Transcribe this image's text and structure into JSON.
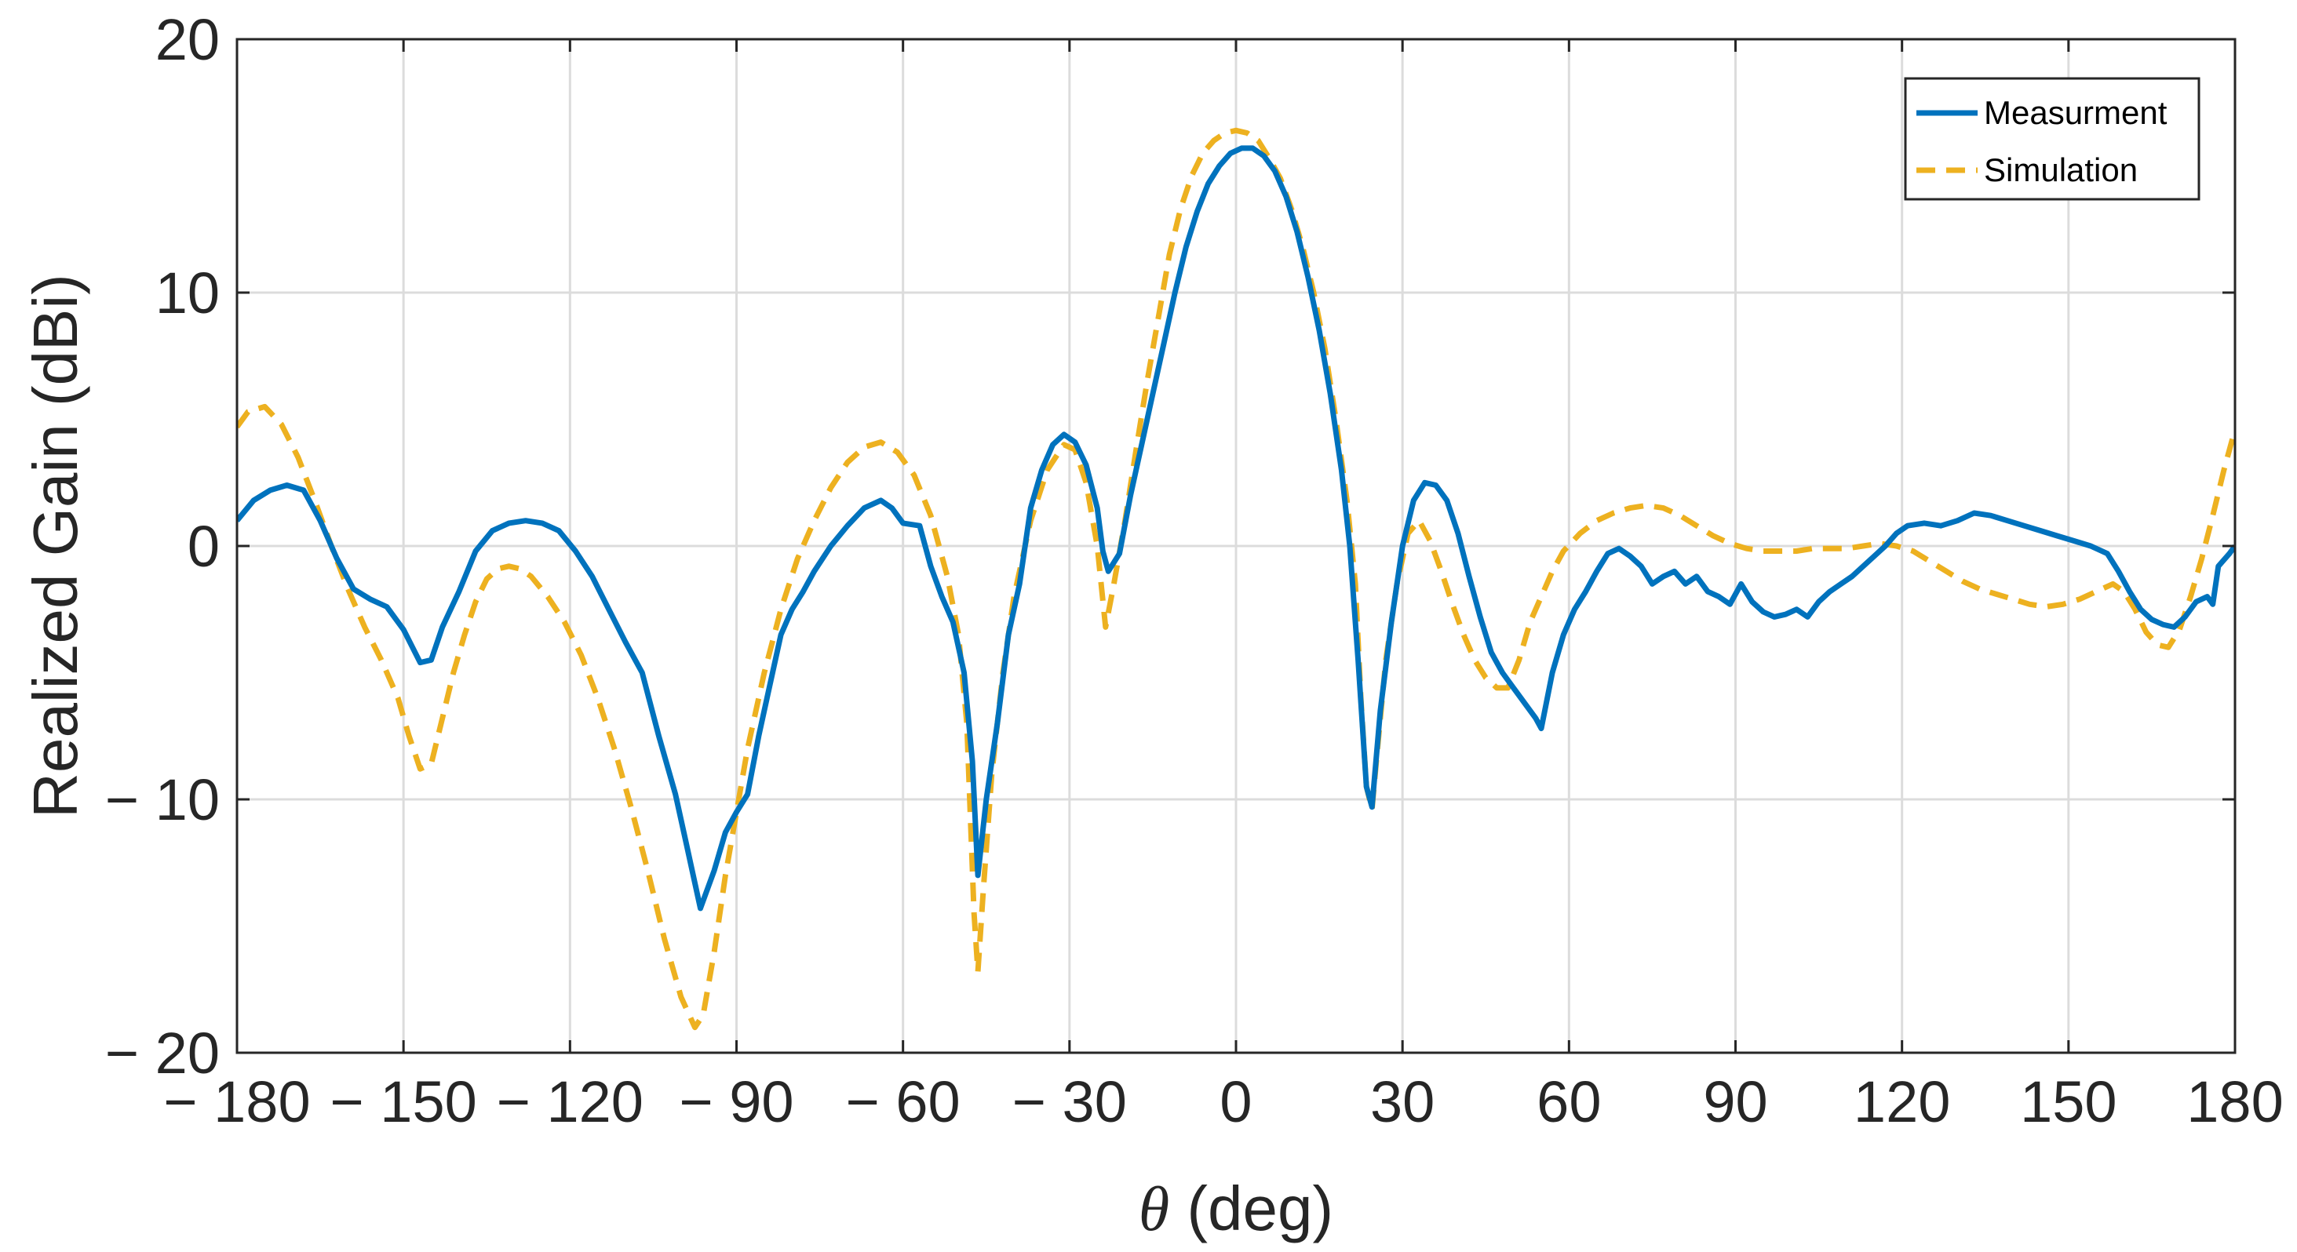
{
  "chart_data": {
    "type": "line",
    "xlabel_symbol": "θ",
    "xlabel_rest": " (deg)",
    "ylabel": "Realized Gain (dBi)",
    "xlim": [
      -180,
      180
    ],
    "ylim": [
      -20,
      20
    ],
    "x_ticks": [
      -180,
      -150,
      -120,
      -90,
      -60,
      -30,
      0,
      30,
      60,
      90,
      120,
      150,
      180
    ],
    "x_tick_labels": [
      "− 180",
      "− 150",
      "− 120",
      "− 90",
      "− 60",
      "− 30",
      "0",
      "30",
      "60",
      "90",
      "120",
      "150",
      "180"
    ],
    "y_ticks": [
      -20,
      -10,
      0,
      10,
      20
    ],
    "y_tick_labels": [
      "− 20",
      "− 10",
      "0",
      "10",
      "20"
    ],
    "grid": true,
    "legend_position": "top-right",
    "series": [
      {
        "name": "Measurment",
        "color": "#0072BD",
        "style": "solid",
        "points": [
          [
            -180,
            1.0
          ],
          [
            -177,
            1.8
          ],
          [
            -174,
            2.2
          ],
          [
            -171,
            2.4
          ],
          [
            -168,
            2.2
          ],
          [
            -165,
            1.0
          ],
          [
            -162,
            -0.5
          ],
          [
            -159,
            -1.7
          ],
          [
            -156,
            -2.1
          ],
          [
            -153,
            -2.4
          ],
          [
            -150,
            -3.3
          ],
          [
            -147,
            -4.6
          ],
          [
            -145,
            -4.5
          ],
          [
            -143,
            -3.2
          ],
          [
            -140,
            -1.8
          ],
          [
            -137,
            -0.2
          ],
          [
            -134,
            0.6
          ],
          [
            -131,
            0.9
          ],
          [
            -128,
            1.0
          ],
          [
            -125,
            0.9
          ],
          [
            -122,
            0.6
          ],
          [
            -119,
            -0.2
          ],
          [
            -116,
            -1.2
          ],
          [
            -113,
            -2.5
          ],
          [
            -110,
            -3.8
          ],
          [
            -107,
            -5.0
          ],
          [
            -104,
            -7.5
          ],
          [
            -101,
            -9.8
          ],
          [
            -99,
            -11.8
          ],
          [
            -96.5,
            -14.3
          ],
          [
            -94,
            -12.8
          ],
          [
            -92,
            -11.3
          ],
          [
            -90,
            -10.5
          ],
          [
            -88,
            -9.8
          ],
          [
            -86,
            -7.5
          ],
          [
            -84,
            -5.5
          ],
          [
            -82,
            -3.5
          ],
          [
            -80,
            -2.5
          ],
          [
            -78,
            -1.8
          ],
          [
            -76,
            -1.0
          ],
          [
            -73,
            0.0
          ],
          [
            -70,
            0.8
          ],
          [
            -67,
            1.5
          ],
          [
            -64,
            1.8
          ],
          [
            -62,
            1.5
          ],
          [
            -60,
            0.9
          ],
          [
            -57,
            0.8
          ],
          [
            -55,
            -0.8
          ],
          [
            -53,
            -2.0
          ],
          [
            -51,
            -3.0
          ],
          [
            -49,
            -5.0
          ],
          [
            -47.5,
            -8.5
          ],
          [
            -46.5,
            -13.0
          ],
          [
            -45,
            -10.0
          ],
          [
            -43,
            -7.0
          ],
          [
            -41,
            -3.5
          ],
          [
            -39,
            -1.5
          ],
          [
            -37,
            1.5
          ],
          [
            -35,
            3.0
          ],
          [
            -33,
            4.0
          ],
          [
            -31,
            4.4
          ],
          [
            -29,
            4.1
          ],
          [
            -27,
            3.2
          ],
          [
            -25,
            1.5
          ],
          [
            -24,
            -0.2
          ],
          [
            -23,
            -1.0
          ],
          [
            -21,
            -0.3
          ],
          [
            -19,
            2.0
          ],
          [
            -17,
            4.0
          ],
          [
            -15,
            6.0
          ],
          [
            -13,
            8.0
          ],
          [
            -11,
            10.0
          ],
          [
            -9,
            11.8
          ],
          [
            -7,
            13.2
          ],
          [
            -5,
            14.3
          ],
          [
            -3,
            15.0
          ],
          [
            -1,
            15.5
          ],
          [
            1,
            15.7
          ],
          [
            3,
            15.7
          ],
          [
            5,
            15.4
          ],
          [
            7,
            14.8
          ],
          [
            9,
            13.8
          ],
          [
            11,
            12.4
          ],
          [
            13,
            10.6
          ],
          [
            15,
            8.5
          ],
          [
            17,
            6.0
          ],
          [
            19,
            3.0
          ],
          [
            20.5,
            0.0
          ],
          [
            22,
            -4.5
          ],
          [
            23.5,
            -9.5
          ],
          [
            24.5,
            -10.3
          ],
          [
            26,
            -6.5
          ],
          [
            28,
            -3.0
          ],
          [
            30,
            0.0
          ],
          [
            32,
            1.8
          ],
          [
            34,
            2.5
          ],
          [
            36,
            2.4
          ],
          [
            38,
            1.8
          ],
          [
            40,
            0.5
          ],
          [
            42,
            -1.2
          ],
          [
            44,
            -2.8
          ],
          [
            46,
            -4.2
          ],
          [
            48,
            -5.0
          ],
          [
            50,
            -5.6
          ],
          [
            52,
            -6.2
          ],
          [
            54,
            -6.8
          ],
          [
            55,
            -7.2
          ],
          [
            57,
            -5.0
          ],
          [
            59,
            -3.5
          ],
          [
            61,
            -2.5
          ],
          [
            63,
            -1.8
          ],
          [
            65,
            -1.0
          ],
          [
            67,
            -0.3
          ],
          [
            69,
            -0.1
          ],
          [
            71,
            -0.4
          ],
          [
            73,
            -0.8
          ],
          [
            75,
            -1.5
          ],
          [
            77,
            -1.2
          ],
          [
            79,
            -1.0
          ],
          [
            81,
            -1.5
          ],
          [
            83,
            -1.2
          ],
          [
            85,
            -1.8
          ],
          [
            87,
            -2.0
          ],
          [
            89,
            -2.3
          ],
          [
            91,
            -1.5
          ],
          [
            93,
            -2.2
          ],
          [
            95,
            -2.6
          ],
          [
            97,
            -2.8
          ],
          [
            99,
            -2.7
          ],
          [
            101,
            -2.5
          ],
          [
            103,
            -2.8
          ],
          [
            105,
            -2.2
          ],
          [
            107,
            -1.8
          ],
          [
            109,
            -1.5
          ],
          [
            111,
            -1.2
          ],
          [
            113,
            -0.8
          ],
          [
            115,
            -0.4
          ],
          [
            117,
            0.0
          ],
          [
            119,
            0.5
          ],
          [
            121,
            0.8
          ],
          [
            124,
            0.9
          ],
          [
            127,
            0.8
          ],
          [
            130,
            1.0
          ],
          [
            133,
            1.3
          ],
          [
            136,
            1.2
          ],
          [
            139,
            1.0
          ],
          [
            142,
            0.8
          ],
          [
            145,
            0.6
          ],
          [
            148,
            0.4
          ],
          [
            151,
            0.2
          ],
          [
            154,
            0.0
          ],
          [
            157,
            -0.3
          ],
          [
            159,
            -1.0
          ],
          [
            161,
            -1.8
          ],
          [
            163,
            -2.5
          ],
          [
            165,
            -2.9
          ],
          [
            167,
            -3.1
          ],
          [
            169,
            -3.2
          ],
          [
            171,
            -2.8
          ],
          [
            173,
            -2.2
          ],
          [
            175,
            -2.0
          ],
          [
            176,
            -2.3
          ],
          [
            177,
            -0.8
          ],
          [
            179,
            -0.3
          ],
          [
            180,
            0.0
          ]
        ]
      },
      {
        "name": "Simulation",
        "color": "#EDB120",
        "style": "dashed",
        "points": [
          [
            -180,
            4.7
          ],
          [
            -178,
            5.3
          ],
          [
            -175,
            5.5
          ],
          [
            -172,
            4.8
          ],
          [
            -169,
            3.5
          ],
          [
            -166,
            1.8
          ],
          [
            -163,
            0.0
          ],
          [
            -160,
            -1.7
          ],
          [
            -157,
            -3.2
          ],
          [
            -154,
            -4.5
          ],
          [
            -151,
            -6.0
          ],
          [
            -149,
            -7.5
          ],
          [
            -147,
            -8.8
          ],
          [
            -145,
            -8.6
          ],
          [
            -143,
            -6.8
          ],
          [
            -141,
            -5.0
          ],
          [
            -139,
            -3.5
          ],
          [
            -137,
            -2.2
          ],
          [
            -135,
            -1.3
          ],
          [
            -133,
            -0.9
          ],
          [
            -131,
            -0.8
          ],
          [
            -129,
            -0.9
          ],
          [
            -127,
            -1.2
          ],
          [
            -124,
            -2.0
          ],
          [
            -121,
            -3.0
          ],
          [
            -118,
            -4.3
          ],
          [
            -115,
            -6.0
          ],
          [
            -112,
            -8.0
          ],
          [
            -109,
            -10.3
          ],
          [
            -106,
            -12.8
          ],
          [
            -103,
            -15.5
          ],
          [
            -100,
            -17.8
          ],
          [
            -97.5,
            -19.0
          ],
          [
            -96,
            -18.5
          ],
          [
            -94,
            -16.0
          ],
          [
            -92,
            -13.0
          ],
          [
            -90,
            -10.5
          ],
          [
            -88,
            -8.0
          ],
          [
            -85,
            -5.0
          ],
          [
            -82,
            -2.5
          ],
          [
            -79,
            -0.5
          ],
          [
            -76,
            1.0
          ],
          [
            -73,
            2.3
          ],
          [
            -70,
            3.3
          ],
          [
            -67,
            3.9
          ],
          [
            -64,
            4.1
          ],
          [
            -61,
            3.7
          ],
          [
            -58,
            2.8
          ],
          [
            -55,
            1.2
          ],
          [
            -52,
            -1.2
          ],
          [
            -50,
            -3.5
          ],
          [
            -48.5,
            -7.0
          ],
          [
            -47.2,
            -14.5
          ],
          [
            -46.5,
            -16.8
          ],
          [
            -45.5,
            -13.5
          ],
          [
            -44,
            -9.0
          ],
          [
            -42,
            -5.0
          ],
          [
            -40,
            -2.0
          ],
          [
            -37,
            1.0
          ],
          [
            -34,
            3.0
          ],
          [
            -31,
            4.0
          ],
          [
            -29,
            3.8
          ],
          [
            -27,
            2.5
          ],
          [
            -25,
            0.0
          ],
          [
            -23.5,
            -3.2
          ],
          [
            -22,
            -1.5
          ],
          [
            -20,
            1.0
          ],
          [
            -18,
            3.8
          ],
          [
            -16,
            6.5
          ],
          [
            -14,
            9.0
          ],
          [
            -12,
            11.5
          ],
          [
            -10,
            13.3
          ],
          [
            -8,
            14.6
          ],
          [
            -6,
            15.5
          ],
          [
            -4,
            16.0
          ],
          [
            -2,
            16.3
          ],
          [
            0,
            16.4
          ],
          [
            2,
            16.3
          ],
          [
            4,
            16.0
          ],
          [
            6,
            15.3
          ],
          [
            8,
            14.5
          ],
          [
            10,
            13.3
          ],
          [
            12,
            11.8
          ],
          [
            14,
            10.0
          ],
          [
            16,
            7.8
          ],
          [
            18,
            5.0
          ],
          [
            20,
            1.8
          ],
          [
            21.5,
            -1.5
          ],
          [
            22.5,
            -6.0
          ],
          [
            23.5,
            -9.5
          ],
          [
            24.5,
            -10.4
          ],
          [
            25.5,
            -8.0
          ],
          [
            27,
            -4.5
          ],
          [
            29,
            -1.5
          ],
          [
            31,
            0.5
          ],
          [
            33,
            1.0
          ],
          [
            35,
            0.2
          ],
          [
            37,
            -1.0
          ],
          [
            39,
            -2.3
          ],
          [
            41,
            -3.5
          ],
          [
            43,
            -4.5
          ],
          [
            45,
            -5.2
          ],
          [
            47,
            -5.6
          ],
          [
            49,
            -5.6
          ],
          [
            51,
            -4.5
          ],
          [
            53,
            -3.0
          ],
          [
            55,
            -2.0
          ],
          [
            57,
            -1.0
          ],
          [
            59,
            -0.2
          ],
          [
            62,
            0.5
          ],
          [
            65,
            1.0
          ],
          [
            68,
            1.3
          ],
          [
            71,
            1.5
          ],
          [
            74,
            1.6
          ],
          [
            77,
            1.5
          ],
          [
            80,
            1.2
          ],
          [
            83,
            0.8
          ],
          [
            86,
            0.4
          ],
          [
            89,
            0.1
          ],
          [
            92,
            -0.1
          ],
          [
            95,
            -0.2
          ],
          [
            98,
            -0.2
          ],
          [
            101,
            -0.2
          ],
          [
            104,
            -0.1
          ],
          [
            107,
            -0.1
          ],
          [
            110,
            -0.1
          ],
          [
            113,
            0.0
          ],
          [
            116,
            0.1
          ],
          [
            119,
            0.0
          ],
          [
            122,
            -0.2
          ],
          [
            125,
            -0.6
          ],
          [
            128,
            -1.0
          ],
          [
            131,
            -1.4
          ],
          [
            134,
            -1.7
          ],
          [
            137,
            -1.9
          ],
          [
            140,
            -2.1
          ],
          [
            143,
            -2.3
          ],
          [
            146,
            -2.4
          ],
          [
            149,
            -2.3
          ],
          [
            152,
            -2.1
          ],
          [
            155,
            -1.8
          ],
          [
            158,
            -1.5
          ],
          [
            160,
            -1.8
          ],
          [
            162,
            -2.5
          ],
          [
            164,
            -3.4
          ],
          [
            166,
            -3.9
          ],
          [
            168,
            -4.0
          ],
          [
            170,
            -3.3
          ],
          [
            172,
            -2.0
          ],
          [
            174,
            -0.5
          ],
          [
            176,
            1.2
          ],
          [
            178,
            3.0
          ],
          [
            180,
            4.6
          ]
        ]
      }
    ]
  }
}
